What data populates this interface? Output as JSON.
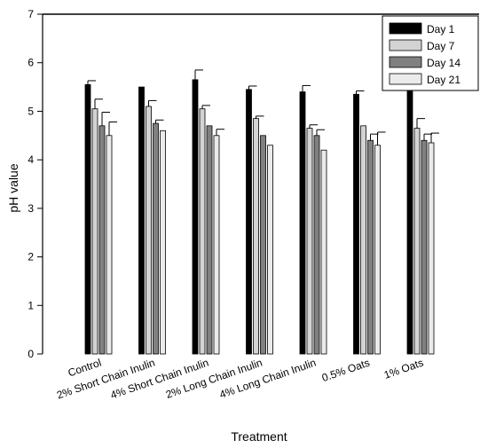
{
  "chart_data": {
    "type": "bar",
    "title": "",
    "xlabel": "Treatment",
    "ylabel": "pH value",
    "ylim": [
      0,
      7
    ],
    "yticks": [
      0,
      1,
      2,
      3,
      4,
      5,
      6,
      7
    ],
    "grid": false,
    "legend_position": "top-right",
    "error_bars": true,
    "categories": [
      "Control",
      "2% Short Chain Inulin",
      "4% Short Chain Inulin",
      "2% Long Chain Inulin",
      "4% Long Chain Inulin",
      "0.5% Oats",
      "1% Oats"
    ],
    "series": [
      {
        "name": "Day 1",
        "color": "#000000",
        "values": [
          5.55,
          5.5,
          5.65,
          5.45,
          5.4,
          5.35,
          5.45
        ],
        "errors": [
          0.08,
          0.0,
          0.2,
          0.07,
          0.13,
          0.07,
          0.07
        ]
      },
      {
        "name": "Day 7",
        "color": "#d3d3d3",
        "values": [
          5.05,
          5.1,
          5.05,
          4.85,
          4.65,
          4.7,
          4.65
        ],
        "errors": [
          0.2,
          0.12,
          0.07,
          0.05,
          0.07,
          0.0,
          0.2
        ]
      },
      {
        "name": "Day 14",
        "color": "#808080",
        "values": [
          4.7,
          4.75,
          4.7,
          4.5,
          4.5,
          4.4,
          4.4
        ],
        "errors": [
          0.28,
          0.07,
          0.0,
          0.0,
          0.12,
          0.13,
          0.13
        ]
      },
      {
        "name": "Day 21",
        "color": "#ebebeb",
        "values": [
          4.5,
          4.6,
          4.5,
          4.3,
          4.2,
          4.3,
          4.35
        ],
        "errors": [
          0.28,
          0.0,
          0.13,
          0.0,
          0.0,
          0.27,
          0.2
        ]
      }
    ]
  }
}
